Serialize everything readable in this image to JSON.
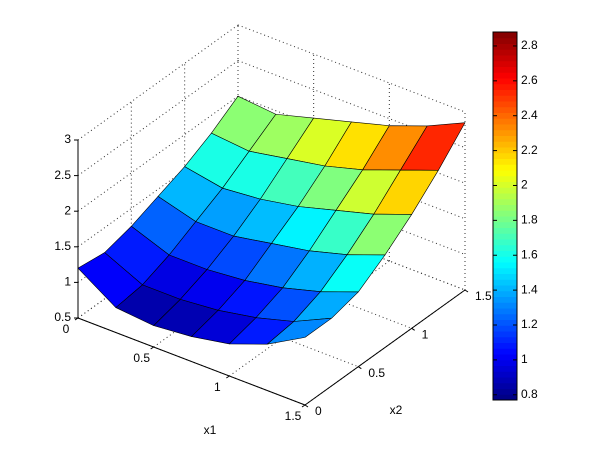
{
  "chart_data": {
    "type": "surface",
    "xlabel": "x1",
    "ylabel": "x2",
    "x": [
      0,
      0.25,
      0.5,
      0.75,
      1,
      1.25,
      1.5
    ],
    "y": [
      0,
      0.25,
      0.5,
      0.75,
      1,
      1.25,
      1.5
    ],
    "z": [
      [
        1.2,
        0.85,
        0.8,
        0.85,
        0.95,
        1.15,
        1.45
      ],
      [
        1.15,
        0.9,
        0.9,
        0.95,
        1.05,
        1.2,
        1.45
      ],
      [
        1.25,
        1.05,
        1.05,
        1.1,
        1.2,
        1.35,
        1.55
      ],
      [
        1.4,
        1.25,
        1.25,
        1.35,
        1.45,
        1.6,
        1.8
      ],
      [
        1.55,
        1.45,
        1.5,
        1.6,
        1.75,
        1.9,
        2.1
      ],
      [
        1.75,
        1.7,
        1.8,
        1.9,
        2.05,
        2.25,
        2.45
      ],
      [
        2.0,
        1.95,
        2.1,
        2.25,
        2.4,
        2.6,
        2.85
      ]
    ],
    "xlim": [
      0,
      1.5
    ],
    "xticks": [
      0,
      0.5,
      1,
      1.5
    ],
    "ylim": [
      0,
      1.5
    ],
    "yticks": [
      0,
      0.5,
      1,
      1.5
    ],
    "zlim": [
      0.5,
      3
    ],
    "zticks": [
      0.5,
      1,
      1.5,
      2,
      2.5,
      3
    ],
    "colormap": "jet",
    "clim": [
      0.77,
      2.88
    ],
    "colorbar_ticks": [
      0.8,
      1,
      1.2,
      1.4,
      1.6,
      1.8,
      2,
      2.2,
      2.4,
      2.6,
      2.8
    ],
    "grid": true
  }
}
